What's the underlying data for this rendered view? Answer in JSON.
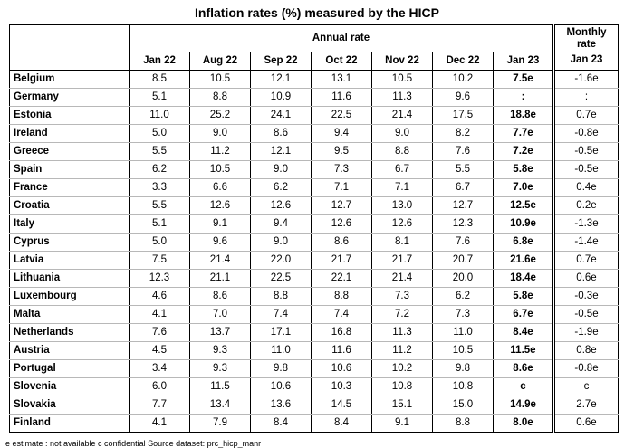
{
  "title": "Inflation rates (%) measured by the HICP",
  "headers": {
    "annual_rate": "Annual rate",
    "monthly_rate": "Monthly rate",
    "annual_months": [
      "Jan 22",
      "Aug 22",
      "Sep 22",
      "Oct 22",
      "Nov 22",
      "Dec 22",
      "Jan 23"
    ],
    "monthly_month": "Jan 23"
  },
  "rows": [
    {
      "country": "Belgium",
      "values": [
        "8.5",
        "10.5",
        "12.1",
        "13.1",
        "10.5",
        "10.2",
        "7.5e"
      ],
      "monthly": "-1.6e"
    },
    {
      "country": "Germany",
      "values": [
        "5.1",
        "8.8",
        "10.9",
        "11.6",
        "11.3",
        "9.6",
        ":"
      ],
      "monthly": ":"
    },
    {
      "country": "Estonia",
      "values": [
        "11.0",
        "25.2",
        "24.1",
        "22.5",
        "21.4",
        "17.5",
        "18.8e"
      ],
      "monthly": "0.7e"
    },
    {
      "country": "Ireland",
      "values": [
        "5.0",
        "9.0",
        "8.6",
        "9.4",
        "9.0",
        "8.2",
        "7.7e"
      ],
      "monthly": "-0.8e"
    },
    {
      "country": "Greece",
      "values": [
        "5.5",
        "11.2",
        "12.1",
        "9.5",
        "8.8",
        "7.6",
        "7.2e"
      ],
      "monthly": "-0.5e"
    },
    {
      "country": "Spain",
      "values": [
        "6.2",
        "10.5",
        "9.0",
        "7.3",
        "6.7",
        "5.5",
        "5.8e"
      ],
      "monthly": "-0.5e"
    },
    {
      "country": "France",
      "values": [
        "3.3",
        "6.6",
        "6.2",
        "7.1",
        "7.1",
        "6.7",
        "7.0e"
      ],
      "monthly": "0.4e"
    },
    {
      "country": "Croatia",
      "values": [
        "5.5",
        "12.6",
        "12.6",
        "12.7",
        "13.0",
        "12.7",
        "12.5e"
      ],
      "monthly": "0.2e"
    },
    {
      "country": "Italy",
      "values": [
        "5.1",
        "9.1",
        "9.4",
        "12.6",
        "12.6",
        "12.3",
        "10.9e"
      ],
      "monthly": "-1.3e"
    },
    {
      "country": "Cyprus",
      "values": [
        "5.0",
        "9.6",
        "9.0",
        "8.6",
        "8.1",
        "7.6",
        "6.8e"
      ],
      "monthly": "-1.4e"
    },
    {
      "country": "Latvia",
      "values": [
        "7.5",
        "21.4",
        "22.0",
        "21.7",
        "21.7",
        "20.7",
        "21.6e"
      ],
      "monthly": "0.7e"
    },
    {
      "country": "Lithuania",
      "values": [
        "12.3",
        "21.1",
        "22.5",
        "22.1",
        "21.4",
        "20.0",
        "18.4e"
      ],
      "monthly": "0.6e"
    },
    {
      "country": "Luxembourg",
      "values": [
        "4.6",
        "8.6",
        "8.8",
        "8.8",
        "7.3",
        "6.2",
        "5.8e"
      ],
      "monthly": "-0.3e"
    },
    {
      "country": "Malta",
      "values": [
        "4.1",
        "7.0",
        "7.4",
        "7.4",
        "7.2",
        "7.3",
        "6.7e"
      ],
      "monthly": "-0.5e"
    },
    {
      "country": "Netherlands",
      "values": [
        "7.6",
        "13.7",
        "17.1",
        "16.8",
        "11.3",
        "11.0",
        "8.4e"
      ],
      "monthly": "-1.9e"
    },
    {
      "country": "Austria",
      "values": [
        "4.5",
        "9.3",
        "11.0",
        "11.6",
        "11.2",
        "10.5",
        "11.5e"
      ],
      "monthly": "0.8e"
    },
    {
      "country": "Portugal",
      "values": [
        "3.4",
        "9.3",
        "9.8",
        "10.6",
        "10.2",
        "9.8",
        "8.6e"
      ],
      "monthly": "-0.8e"
    },
    {
      "country": "Slovenia",
      "values": [
        "6.0",
        "11.5",
        "10.6",
        "10.3",
        "10.8",
        "10.8",
        "c"
      ],
      "monthly": "c"
    },
    {
      "country": "Slovakia",
      "values": [
        "7.7",
        "13.4",
        "13.6",
        "14.5",
        "15.1",
        "15.0",
        "14.9e"
      ],
      "monthly": "2.7e"
    },
    {
      "country": "Finland",
      "values": [
        "4.1",
        "7.9",
        "8.4",
        "8.4",
        "9.1",
        "8.8",
        "8.0e"
      ],
      "monthly": "0.6e"
    }
  ],
  "footer": "e estimate   : not available   c confidential     Source dataset: prc_hicp_manr"
}
